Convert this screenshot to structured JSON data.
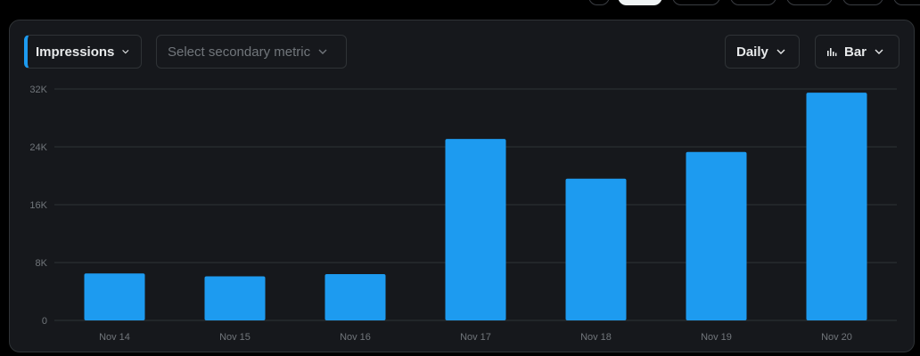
{
  "controls": {
    "primary_metric": "Impressions",
    "secondary_placeholder": "Select secondary metric",
    "period": "Daily",
    "chart_type": "Bar"
  },
  "colors": {
    "bar": "#1d9bf0",
    "grid": "#2f3336",
    "panel": "#16181c",
    "text_muted": "#71767b",
    "text": "#e7e9ea"
  },
  "chart_data": {
    "type": "bar",
    "categories": [
      "Nov 14",
      "Nov 15",
      "Nov 16",
      "Nov 17",
      "Nov 18",
      "Nov 19",
      "Nov 20"
    ],
    "values": [
      6500,
      6100,
      6400,
      25100,
      19600,
      23300,
      31500
    ],
    "ylim": [
      0,
      32000
    ],
    "yticks": [
      0,
      8000,
      16000,
      24000,
      32000
    ],
    "ytick_labels": [
      "0",
      "8K",
      "16K",
      "24K",
      "32K"
    ],
    "grid": true,
    "title": "",
    "xlabel": "",
    "ylabel": ""
  }
}
